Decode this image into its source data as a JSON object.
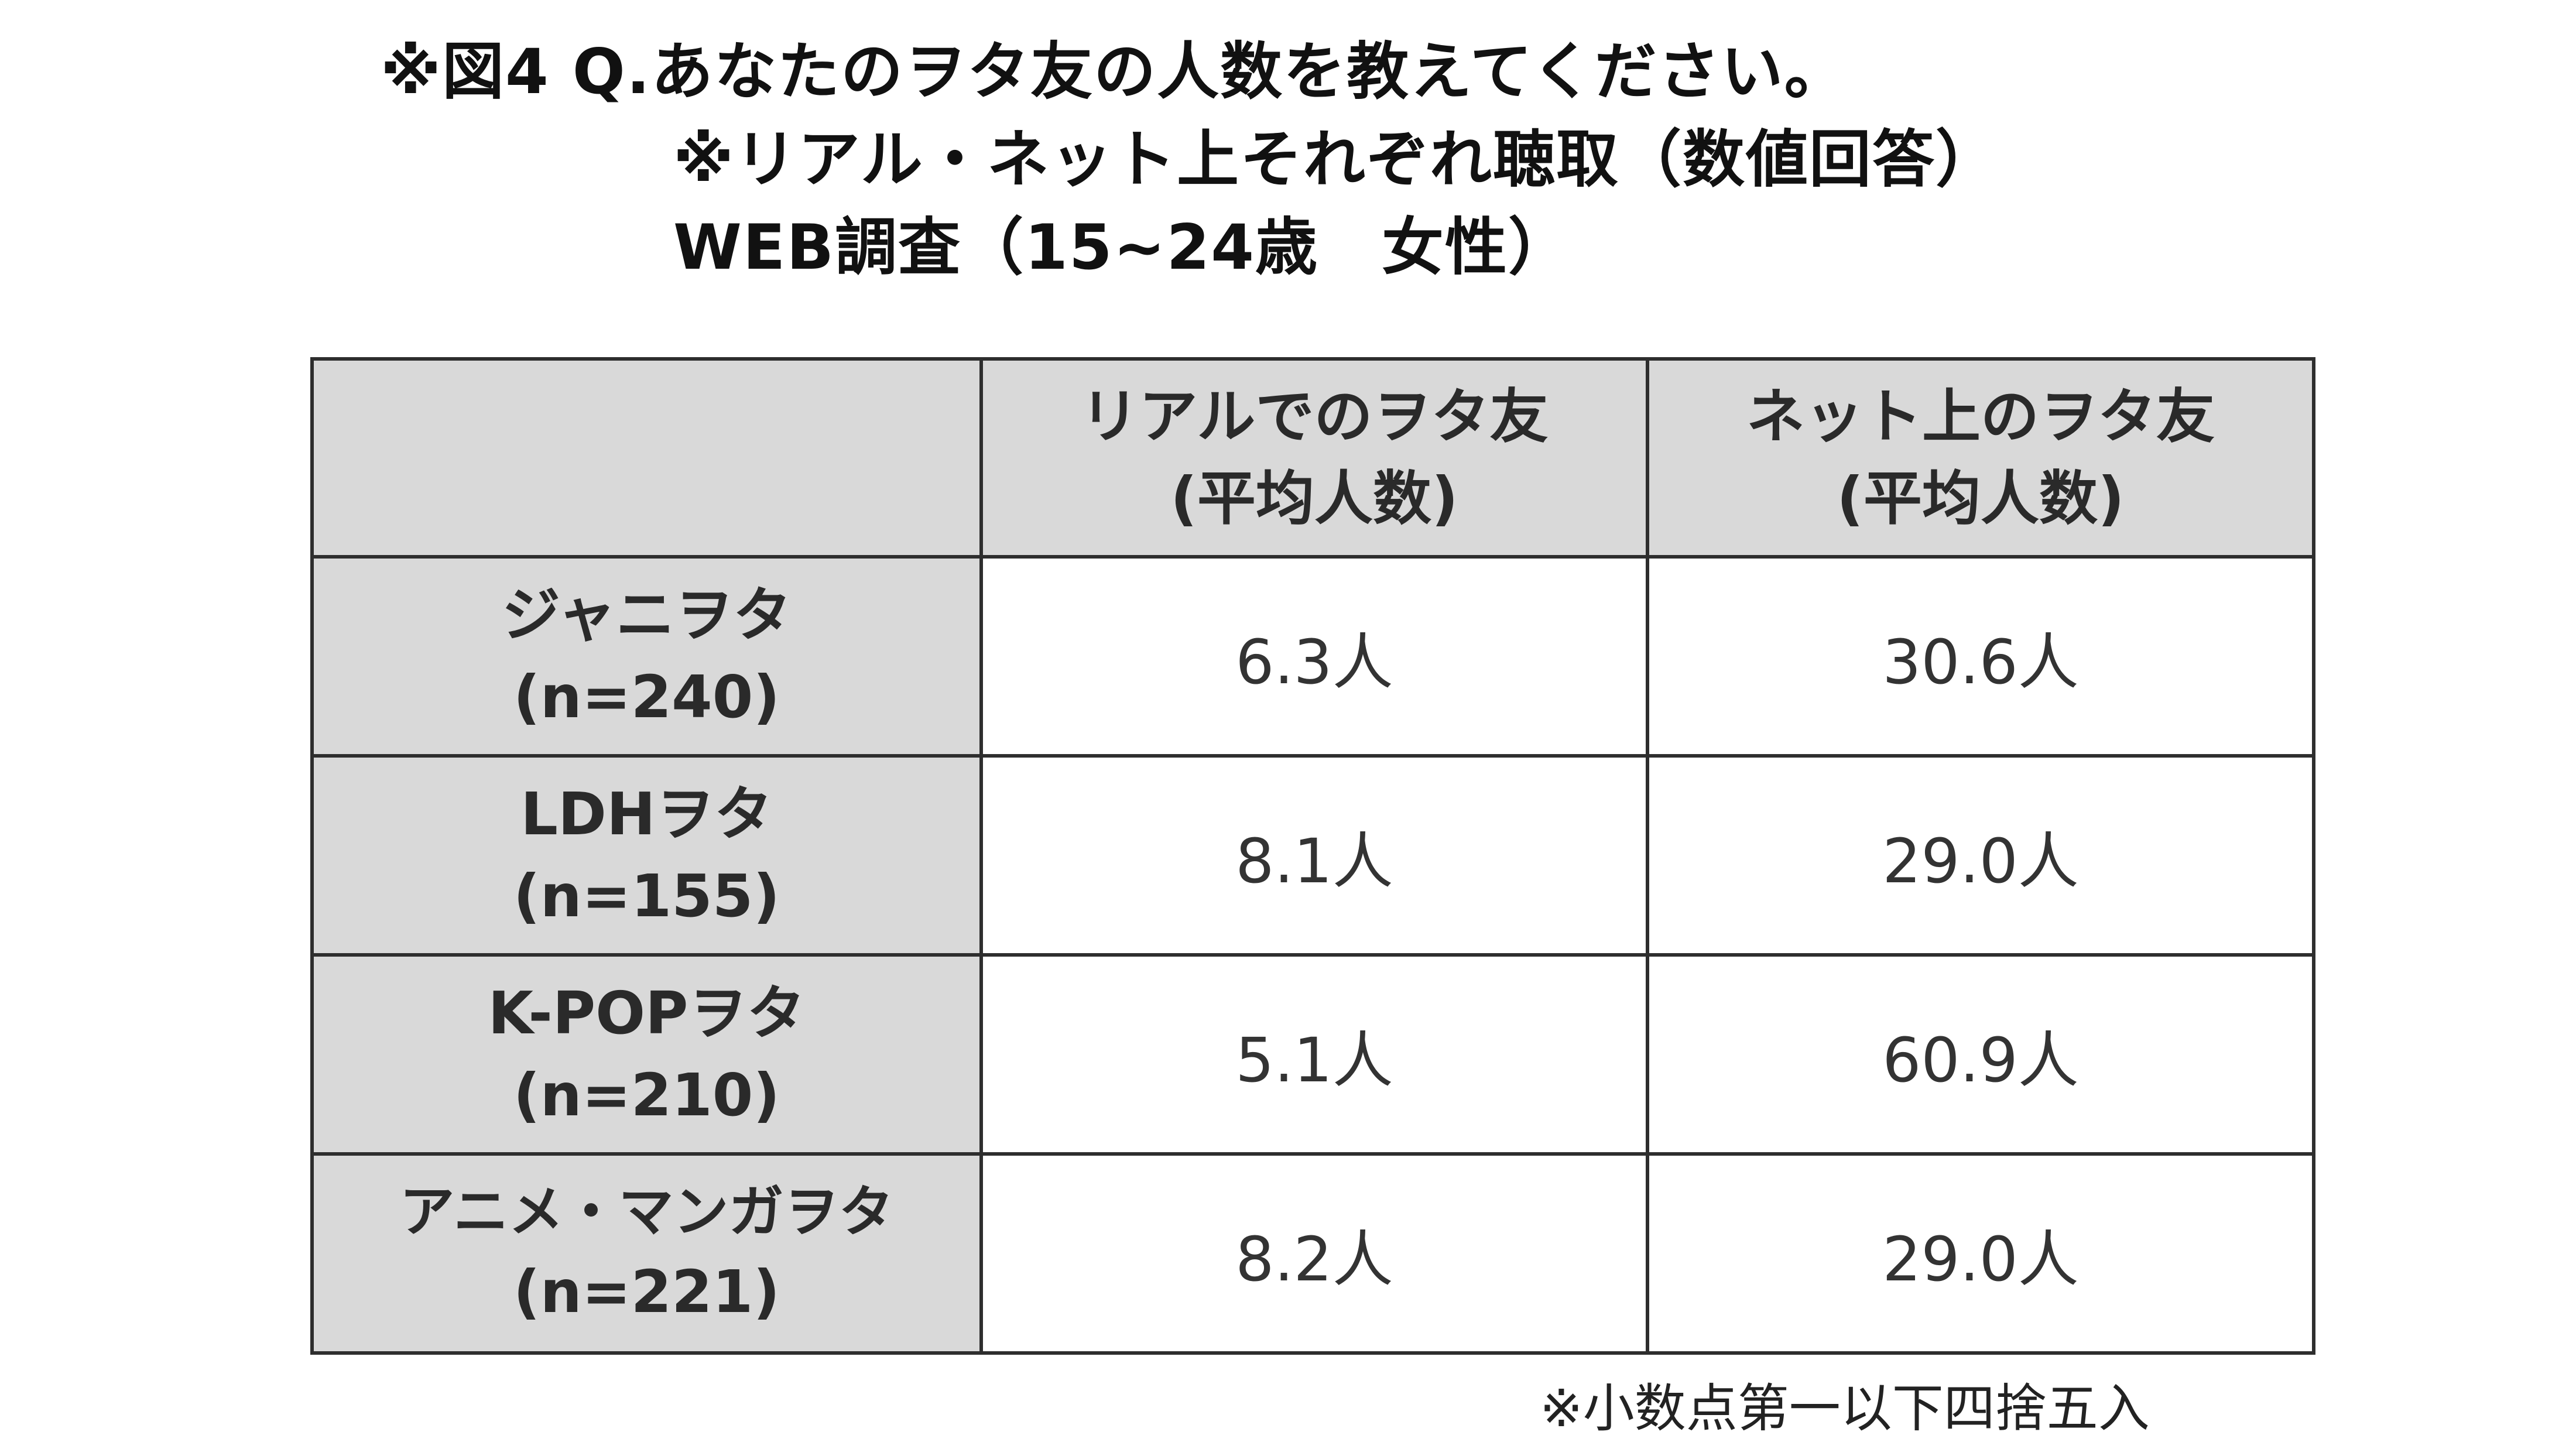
{
  "title": {
    "line1": "※図4 Q.あなたのヲタ友の人数を教えてください。",
    "line2": "※リアル・ネット上それぞれ聴取（数値回答）",
    "line3": "WEB調査（15~24歳　女性）"
  },
  "chart_data": {
    "type": "table",
    "columns": [
      {
        "line1": "",
        "line2": ""
      },
      {
        "line1": "リアルでのヲタ友",
        "line2": "(平均人数)"
      },
      {
        "line1": "ネット上のヲタ友",
        "line2": "(平均人数)"
      }
    ],
    "rows": [
      {
        "label": "ジャニヲタ",
        "n": "(n=240)",
        "real": "6.3人",
        "net": "30.6人",
        "real_value": 6.3,
        "net_value": 30.6
      },
      {
        "label": "LDHヲタ",
        "n": "(n=155)",
        "real": "8.1人",
        "net": "29.0人",
        "real_value": 8.1,
        "net_value": 29.0
      },
      {
        "label": "K-POPヲタ",
        "n": "(n=210)",
        "real": "5.1人",
        "net": "60.9人",
        "real_value": 5.1,
        "net_value": 60.9
      },
      {
        "label": "アニメ・マンガヲタ",
        "n": "(n=221)",
        "real": "8.2人",
        "net": "29.0人",
        "real_value": 8.2,
        "net_value": 29.0
      }
    ]
  },
  "footnote": "※小数点第一以下四捨五入",
  "colors": {
    "header_fill": "#d9d9d9",
    "border": "#2e2e2e",
    "background": "#ffffff"
  }
}
